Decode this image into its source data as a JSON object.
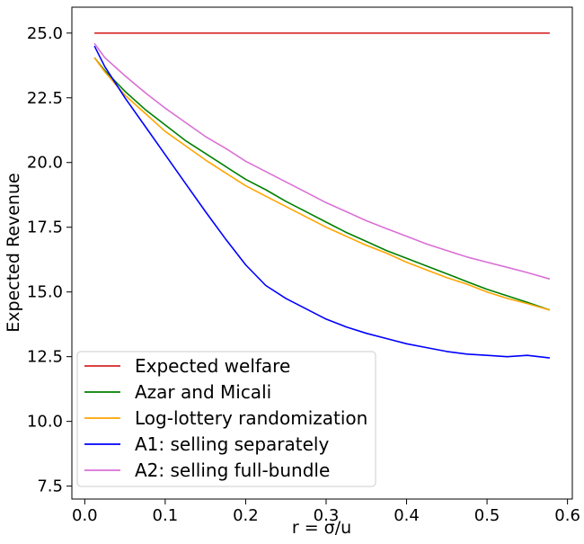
{
  "chart_data": {
    "type": "line",
    "title": "",
    "xlabel": "r = σ/u",
    "ylabel": "Expected Revenue",
    "xlim": [
      -0.016,
      0.606
    ],
    "ylim": [
      7.0,
      26.0
    ],
    "x_ticks": [
      0.0,
      0.1,
      0.2,
      0.3,
      0.4,
      0.5,
      0.6
    ],
    "x_tick_labels": [
      "0.0",
      "0.1",
      "0.2",
      "0.3",
      "0.4",
      "0.5",
      "0.6"
    ],
    "y_ticks": [
      7.5,
      10.0,
      12.5,
      15.0,
      17.5,
      20.0,
      22.5,
      25.0
    ],
    "y_tick_labels": [
      "7.5",
      "10.0",
      "12.5",
      "15.0",
      "17.5",
      "20.0",
      "22.5",
      "25.0"
    ],
    "grid": false,
    "legend_position": "lower-left",
    "series": [
      {
        "name": "Expected welfare",
        "color": "#d62728",
        "x": [
          0.012,
          0.578
        ],
        "y": [
          25.0,
          25.0
        ]
      },
      {
        "name": "Azar and Micali",
        "color": "#008000",
        "x": [
          0.012,
          0.025,
          0.05,
          0.075,
          0.1,
          0.125,
          0.15,
          0.175,
          0.2,
          0.225,
          0.25,
          0.275,
          0.3,
          0.325,
          0.35,
          0.375,
          0.4,
          0.425,
          0.45,
          0.475,
          0.5,
          0.525,
          0.55,
          0.578
        ],
        "y": [
          24.05,
          23.55,
          22.75,
          22.05,
          21.45,
          20.85,
          20.35,
          19.85,
          19.35,
          18.95,
          18.5,
          18.1,
          17.7,
          17.3,
          16.95,
          16.6,
          16.3,
          16.0,
          15.7,
          15.4,
          15.1,
          14.85,
          14.6,
          14.3
        ]
      },
      {
        "name": "Log-lottery randomization",
        "color": "#ffa500",
        "x": [
          0.012,
          0.025,
          0.05,
          0.075,
          0.1,
          0.125,
          0.15,
          0.175,
          0.2,
          0.225,
          0.25,
          0.275,
          0.3,
          0.325,
          0.35,
          0.375,
          0.4,
          0.425,
          0.45,
          0.475,
          0.5,
          0.525,
          0.55,
          0.578
        ],
        "y": [
          24.05,
          23.5,
          22.6,
          21.9,
          21.2,
          20.65,
          20.1,
          19.6,
          19.1,
          18.7,
          18.3,
          17.9,
          17.5,
          17.15,
          16.8,
          16.5,
          16.15,
          15.85,
          15.55,
          15.3,
          15.0,
          14.75,
          14.55,
          14.3
        ]
      },
      {
        "name": "A1: selling separately",
        "color": "#0000ff",
        "x": [
          0.012,
          0.025,
          0.05,
          0.075,
          0.1,
          0.125,
          0.15,
          0.175,
          0.2,
          0.225,
          0.25,
          0.275,
          0.3,
          0.325,
          0.35,
          0.375,
          0.4,
          0.425,
          0.45,
          0.475,
          0.5,
          0.525,
          0.55,
          0.578
        ],
        "y": [
          24.5,
          23.7,
          22.5,
          21.4,
          20.3,
          19.2,
          18.1,
          17.05,
          16.05,
          15.25,
          14.75,
          14.35,
          13.95,
          13.65,
          13.4,
          13.2,
          13.0,
          12.85,
          12.7,
          12.6,
          12.55,
          12.5,
          12.55,
          12.45
        ]
      },
      {
        "name": "A2: selling full-bundle",
        "color": "#da70d6",
        "x": [
          0.012,
          0.025,
          0.05,
          0.075,
          0.1,
          0.125,
          0.15,
          0.175,
          0.2,
          0.225,
          0.25,
          0.275,
          0.3,
          0.325,
          0.35,
          0.375,
          0.4,
          0.425,
          0.45,
          0.475,
          0.5,
          0.525,
          0.55,
          0.578
        ],
        "y": [
          24.6,
          24.05,
          23.35,
          22.7,
          22.1,
          21.55,
          21.0,
          20.55,
          20.05,
          19.65,
          19.25,
          18.85,
          18.45,
          18.1,
          17.75,
          17.45,
          17.15,
          16.85,
          16.6,
          16.35,
          16.15,
          15.95,
          15.75,
          15.5
        ]
      }
    ]
  }
}
